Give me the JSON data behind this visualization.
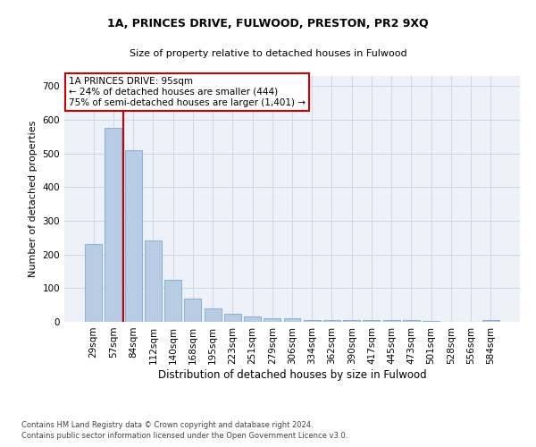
{
  "title1": "1A, PRINCES DRIVE, FULWOOD, PRESTON, PR2 9XQ",
  "title2": "Size of property relative to detached houses in Fulwood",
  "xlabel": "Distribution of detached houses by size in Fulwood",
  "ylabel": "Number of detached properties",
  "categories": [
    "29sqm",
    "57sqm",
    "84sqm",
    "112sqm",
    "140sqm",
    "168sqm",
    "195sqm",
    "223sqm",
    "251sqm",
    "279sqm",
    "306sqm",
    "334sqm",
    "362sqm",
    "390sqm",
    "417sqm",
    "445sqm",
    "473sqm",
    "501sqm",
    "528sqm",
    "556sqm",
    "584sqm"
  ],
  "values": [
    230,
    575,
    510,
    242,
    125,
    68,
    40,
    25,
    16,
    10,
    11,
    5,
    5,
    5,
    5,
    4,
    4,
    2,
    0,
    0,
    5
  ],
  "bar_color": "#b8cce4",
  "bar_edge_color": "#8fb4d9",
  "grid_color": "#d0d8e8",
  "background_color": "#eef2f8",
  "vline_color": "#cc0000",
  "annotation_text": "1A PRINCES DRIVE: 95sqm\n← 24% of detached houses are smaller (444)\n75% of semi-detached houses are larger (1,401) →",
  "annotation_box_color": "#ffffff",
  "annotation_box_edge": "#cc0000",
  "ylim": [
    0,
    730
  ],
  "yticks": [
    0,
    100,
    200,
    300,
    400,
    500,
    600,
    700
  ],
  "footer1": "Contains HM Land Registry data © Crown copyright and database right 2024.",
  "footer2": "Contains public sector information licensed under the Open Government Licence v3.0."
}
